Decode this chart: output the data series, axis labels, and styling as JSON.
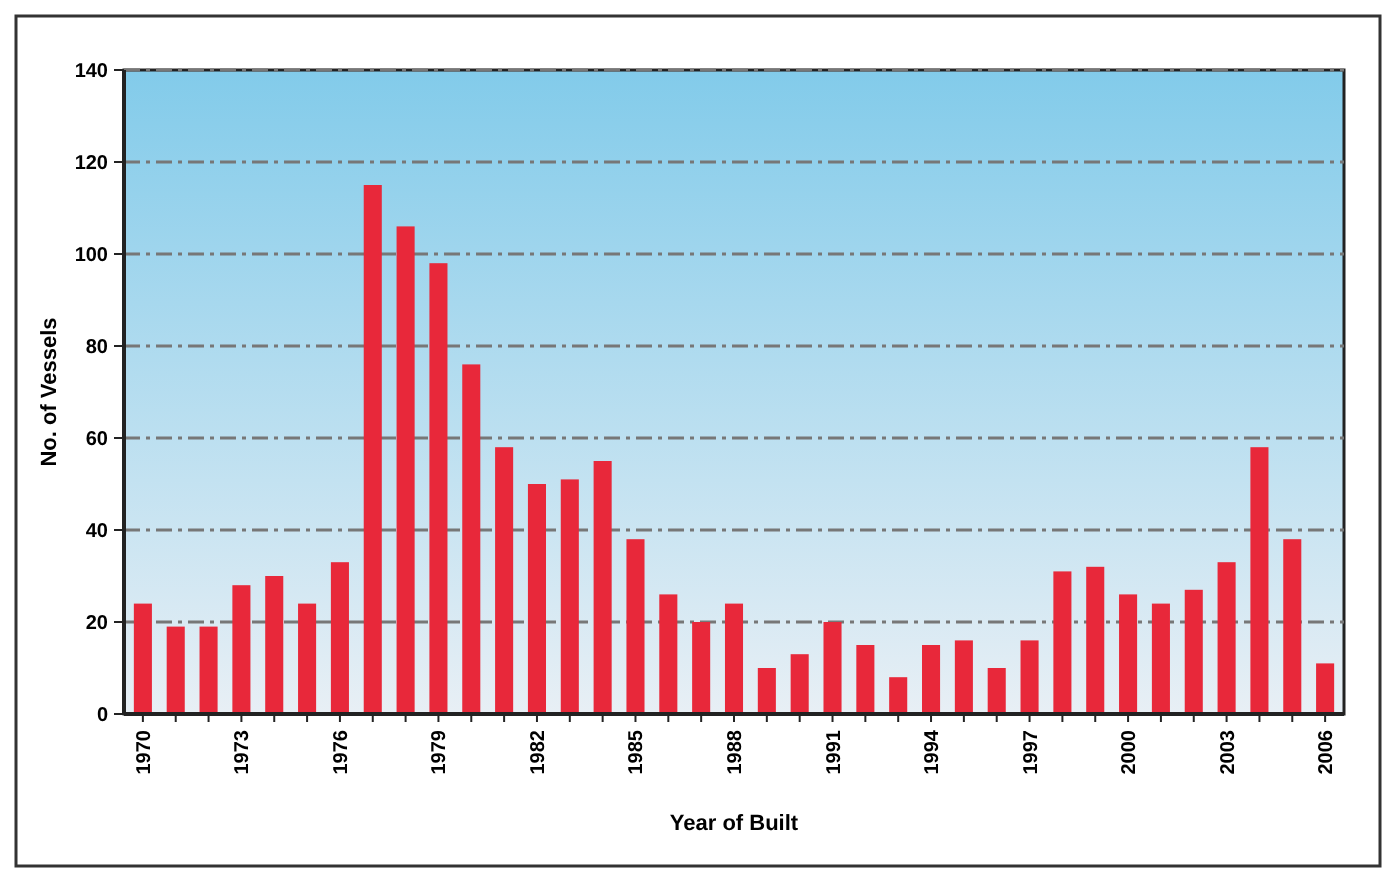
{
  "chart_data": {
    "type": "bar",
    "xlabel": "Year of Built",
    "ylabel": "No. of Vessels",
    "categories": [
      "1970",
      null,
      null,
      "1973",
      null,
      null,
      "1976",
      null,
      null,
      "1979",
      null,
      null,
      "1982",
      null,
      null,
      "1985",
      null,
      null,
      "1988",
      null,
      null,
      "1991",
      null,
      null,
      "1994",
      null,
      null,
      "1997",
      null,
      null,
      "2000",
      null,
      null,
      "2003",
      null,
      null,
      "2006"
    ],
    "values": [
      24,
      19,
      19,
      28,
      30,
      24,
      33,
      115,
      106,
      98,
      76,
      58,
      50,
      51,
      55,
      38,
      26,
      20,
      24,
      10,
      13,
      20,
      15,
      8,
      15,
      16,
      10,
      16,
      31,
      32,
      26,
      24,
      27,
      33,
      58,
      38,
      11
    ],
    "color": "#e8283a",
    "ylim": [
      0,
      140
    ],
    "yticks": [
      0,
      20,
      40,
      60,
      80,
      100,
      120,
      140
    ],
    "grid": "y"
  }
}
